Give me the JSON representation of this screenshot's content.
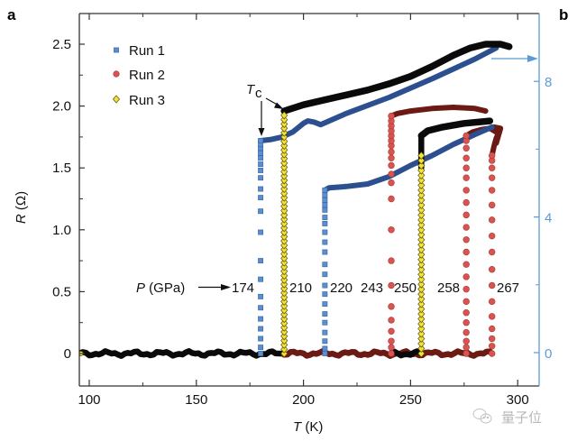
{
  "chart_data": {
    "type": "scatter",
    "panel_labels": [
      "a",
      "b"
    ],
    "xlabel": "T",
    "xlabel_unit": " (K)",
    "ylabel": "R",
    "ylabel_unit": " (Ω)",
    "xlim": [
      95.5,
      310
    ],
    "ylim": [
      -0.26,
      2.75
    ],
    "xticks": [
      100,
      150,
      200,
      250,
      300
    ],
    "xticks_minor": [
      125,
      175,
      225,
      275
    ],
    "yticks": [
      0,
      0.5,
      1.0,
      1.5,
      2.0,
      2.5
    ],
    "ytick_labels": [
      "0",
      "0.5",
      "1.0",
      "1.5",
      "2.0",
      "2.5"
    ],
    "yticks_minor": [
      0.25,
      0.75,
      1.25,
      1.75,
      2.25
    ],
    "y2ticks": [
      0,
      4,
      8
    ],
    "y2ticks_minor": [
      2,
      6
    ],
    "y2lim": [
      -0.98,
      10.0
    ],
    "y2_color": "#5b9bd5",
    "grid": false,
    "legend_position": "top-left",
    "legend": [
      {
        "name": "Run 1",
        "marker": "square",
        "color": "#4a7fc1"
      },
      {
        "name": "Run 2",
        "marker": "circle",
        "color": "#d9534f"
      },
      {
        "name": "Run 3",
        "marker": "diamond",
        "color": "#f2e33a"
      }
    ],
    "annotations": {
      "tc_label": "T",
      "tc_sub": "c",
      "pressure_label": "P",
      "pressure_unit": " (GPa)"
    },
    "series": [
      {
        "name": "174",
        "run": "Run 1",
        "pressure_gpa": 174,
        "tc": 180,
        "transition": [
          0,
          0.05,
          0.12,
          0.2,
          0.28,
          0.37,
          0.46,
          0.6,
          0.75,
          0.98,
          1.15,
          1.26,
          1.33,
          1.42,
          1.48,
          1.53,
          1.58,
          1.62,
          1.66,
          1.69,
          1.72
        ],
        "normal": [
          [
            180,
            1.72
          ],
          [
            185,
            1.73
          ],
          [
            190,
            1.75
          ],
          [
            195,
            1.79
          ],
          [
            200,
            1.86
          ],
          [
            202,
            1.88
          ],
          [
            205,
            1.87
          ],
          [
            208,
            1.85
          ],
          [
            212,
            1.88
          ],
          [
            220,
            1.94
          ],
          [
            240,
            2.07
          ],
          [
            260,
            2.22
          ],
          [
            280,
            2.38
          ],
          [
            290,
            2.47
          ]
        ]
      },
      {
        "name": "210",
        "run": "Run 3",
        "pressure_gpa": 210,
        "tc": 191,
        "transition_step": 0.035,
        "transition_top": 1.93,
        "normal": [
          [
            191,
            1.96
          ],
          [
            200,
            2.01
          ],
          [
            210,
            2.05
          ],
          [
            220,
            2.09
          ],
          [
            230,
            2.13
          ],
          [
            240,
            2.18
          ],
          [
            250,
            2.24
          ],
          [
            260,
            2.32
          ],
          [
            270,
            2.41
          ],
          [
            278,
            2.47
          ],
          [
            285,
            2.5
          ],
          [
            292,
            2.5
          ],
          [
            296,
            2.48
          ]
        ]
      },
      {
        "name": "220",
        "run": "Run 1",
        "pressure_gpa": 220,
        "tc": 210,
        "transition": [
          0,
          0.04,
          0.1,
          0.17,
          0.25,
          0.32,
          0.4,
          0.48,
          0.55,
          0.64,
          0.72,
          0.82,
          0.9,
          0.98,
          1.05,
          1.1,
          1.16,
          1.2,
          1.24,
          1.28,
          1.32
        ],
        "normal": [
          [
            210,
            1.32
          ],
          [
            212,
            1.34
          ],
          [
            220,
            1.35
          ],
          [
            230,
            1.37
          ],
          [
            240,
            1.43
          ],
          [
            250,
            1.52
          ],
          [
            260,
            1.6
          ],
          [
            270,
            1.69
          ],
          [
            280,
            1.77
          ],
          [
            288,
            1.83
          ]
        ]
      },
      {
        "name": "243",
        "run": "Run 2",
        "pressure_gpa": 243,
        "tc": 241,
        "transition": [
          0,
          0.05,
          0.1,
          0.18,
          0.27,
          0.38,
          0.55,
          0.75,
          1.0,
          1.25,
          1.38,
          1.45,
          1.52,
          1.58,
          1.63,
          1.68,
          1.72,
          1.76,
          1.8,
          1.84,
          1.88,
          1.92
        ],
        "normal": [
          [
            241,
            1.92
          ],
          [
            244,
            1.94
          ],
          [
            250,
            1.96
          ],
          [
            260,
            1.98
          ],
          [
            270,
            1.99
          ],
          [
            280,
            1.98
          ],
          [
            285,
            1.96
          ]
        ]
      },
      {
        "name": "250",
        "run": "Run 3",
        "pressure_gpa": 250,
        "tc": 255,
        "transition_step": 0.04,
        "transition_top": 1.6,
        "black_top": 1.76,
        "normal": [
          [
            255,
            1.76
          ],
          [
            258,
            1.8
          ],
          [
            265,
            1.83
          ],
          [
            275,
            1.86
          ],
          [
            287,
            1.88
          ]
        ]
      },
      {
        "name": "258",
        "run": "Run 2",
        "pressure_gpa": 258,
        "tc": 276,
        "transition": [
          0,
          0.05,
          0.1,
          0.17,
          0.25,
          0.33,
          0.42,
          0.52,
          0.62,
          0.72,
          0.82,
          0.92,
          1.02,
          1.12,
          1.22,
          1.32,
          1.42,
          1.5,
          1.58,
          1.66,
          1.72,
          1.76
        ],
        "normal": [
          [
            276,
            1.76
          ],
          [
            279,
            1.79
          ],
          [
            283,
            1.81
          ],
          [
            287,
            1.82
          ]
        ]
      },
      {
        "name": "267",
        "run": "Run 2",
        "pressure_gpa": 267,
        "tc": 288,
        "transition": [
          0,
          0.06,
          0.12,
          0.2,
          0.3,
          0.42,
          0.55,
          0.68,
          0.82,
          0.95,
          1.08,
          1.2,
          1.32,
          1.42,
          1.5,
          1.56,
          1.6
        ],
        "normal": [
          [
            288,
            1.6
          ],
          [
            289,
            1.68
          ],
          [
            290,
            1.74
          ],
          [
            291,
            1.78
          ],
          [
            289,
            1.8
          ],
          [
            287,
            1.82
          ],
          [
            289,
            1.83
          ],
          [
            292,
            1.82
          ],
          [
            291,
            1.76
          ],
          [
            290,
            1.7
          ]
        ]
      }
    ],
    "baselines": [
      {
        "run": "Run 3",
        "from": 95.5,
        "to": 191,
        "color": "#0a0a0a"
      },
      {
        "run": "Run 2",
        "from": 191,
        "to": 288,
        "color": "#6b1a14"
      },
      {
        "run": "Run 3",
        "from": 241,
        "to": 255,
        "color": "#0a0a0a"
      }
    ],
    "right_axis_arrow_at": 9.3
  },
  "watermark": {
    "text": "量子位"
  }
}
